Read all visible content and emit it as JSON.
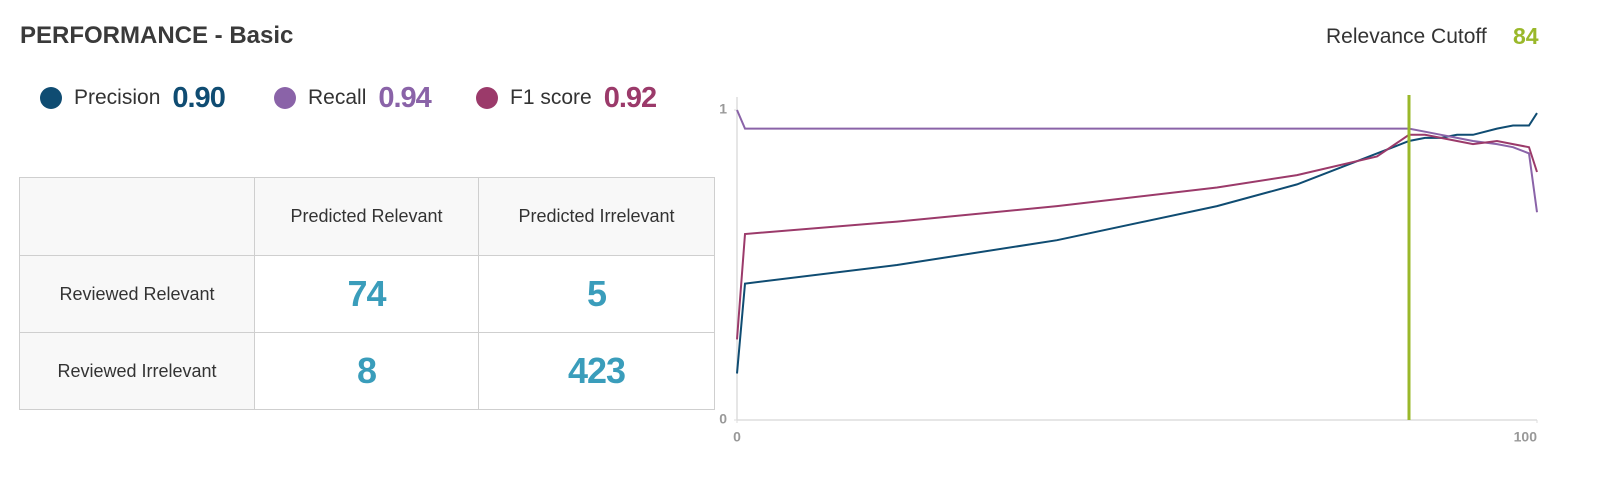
{
  "header": {
    "title": "PERFORMANCE - Basic",
    "cutoff_label": "Relevance Cutoff",
    "cutoff_value": 84
  },
  "scores": [
    "0.90",
    "0.94",
    "0.92"
  ],
  "table": {
    "columns": [
      "Predicted Relevant",
      "Predicted Irrelevant"
    ],
    "rows": [
      [
        "Reviewed Relevant",
        74,
        5
      ],
      [
        "Reviewed Irrelevant",
        8,
        423
      ]
    ]
  },
  "chart_data": {
    "type": "line",
    "x": [
      0,
      1,
      20,
      40,
      60,
      70,
      80,
      84,
      86,
      88,
      90,
      92,
      95,
      97,
      99,
      100
    ],
    "series": [
      {
        "name": "Precision",
        "color": "#0f4c72",
        "values": [
          0.15,
          0.44,
          0.5,
          0.58,
          0.69,
          0.76,
          0.86,
          0.9,
          0.91,
          0.91,
          0.92,
          0.92,
          0.94,
          0.95,
          0.95,
          0.99
        ]
      },
      {
        "name": "Recall",
        "color": "#8a63a8",
        "values": [
          1.0,
          0.94,
          0.94,
          0.94,
          0.94,
          0.94,
          0.94,
          0.94,
          0.93,
          0.92,
          0.91,
          0.9,
          0.89,
          0.88,
          0.86,
          0.67
        ]
      },
      {
        "name": "F1 score",
        "color": "#9b3a6a",
        "values": [
          0.26,
          0.6,
          0.64,
          0.69,
          0.75,
          0.79,
          0.85,
          0.92,
          0.92,
          0.91,
          0.9,
          0.89,
          0.9,
          0.89,
          0.88,
          0.8
        ]
      }
    ],
    "cutoff_color": "#9ab82a",
    "xlim": [
      0,
      100
    ],
    "xticks": [
      0,
      100
    ],
    "ylim": [
      0,
      1
    ],
    "yticks": [
      0,
      1
    ]
  }
}
